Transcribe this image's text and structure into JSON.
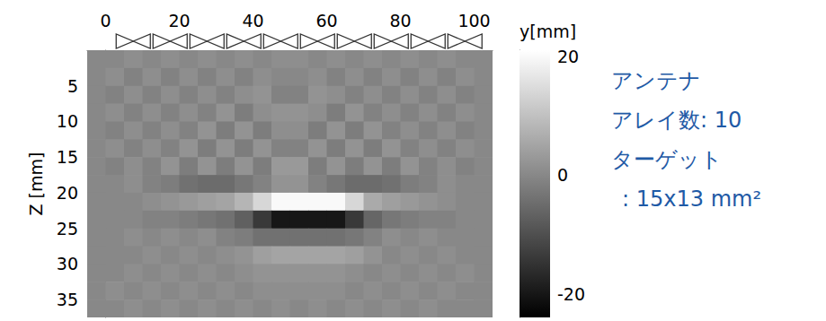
{
  "chart_data": {
    "type": "heatmap",
    "xlim": [
      -5,
      105
    ],
    "xticks": [
      0,
      20,
      40,
      60,
      80,
      100
    ],
    "ylim": [
      0,
      37.5
    ],
    "yticks": [
      5,
      10,
      15,
      20,
      25,
      30,
      35
    ],
    "ylabel": "Z [mm]",
    "x": [
      -2.5,
      2.5,
      7.5,
      12.5,
      17.5,
      22.5,
      27.5,
      32.5,
      37.5,
      42.5,
      47.5,
      52.5,
      57.5,
      62.5,
      67.5,
      72.5,
      77.5,
      82.5,
      87.5,
      92.5,
      97.5,
      102.5
    ],
    "y": [
      1.25,
      3.75,
      6.25,
      8.75,
      11.25,
      13.75,
      16.25,
      18.75,
      21.25,
      23.75,
      26.25,
      28.75,
      31.25,
      33.75,
      36.25
    ],
    "cells": [
      [
        0,
        0,
        1,
        0,
        1,
        0,
        1,
        0,
        1,
        0,
        1,
        1,
        0,
        1,
        0,
        1,
        0,
        1,
        0,
        1,
        0,
        0
      ],
      [
        0,
        1,
        -1,
        1,
        -1,
        1,
        -1,
        1,
        -1,
        1,
        0,
        0,
        1,
        -1,
        1,
        -1,
        1,
        -1,
        1,
        -1,
        1,
        0
      ],
      [
        0,
        -1,
        1,
        -1,
        1,
        -1,
        1,
        -1,
        1,
        2,
        -1,
        -1,
        2,
        1,
        -1,
        1,
        -1,
        1,
        -1,
        1,
        -1,
        0
      ],
      [
        0,
        1,
        -1,
        1,
        -1,
        1,
        -1,
        2,
        -2,
        1,
        2,
        2,
        1,
        -2,
        2,
        -1,
        1,
        -1,
        1,
        -1,
        1,
        0
      ],
      [
        0,
        -1,
        1,
        -1,
        1,
        -1,
        2,
        -2,
        2,
        -2,
        1,
        1,
        -2,
        2,
        -2,
        2,
        -1,
        1,
        -1,
        1,
        -1,
        0
      ],
      [
        0,
        1,
        -1,
        1,
        -1,
        2,
        -2,
        2,
        -2,
        2,
        -1,
        -1,
        2,
        -2,
        2,
        -2,
        2,
        -1,
        1,
        -1,
        1,
        0
      ],
      [
        0,
        -1,
        1,
        -1,
        2,
        -2,
        2,
        -2,
        2,
        -2,
        3,
        3,
        -2,
        2,
        -2,
        2,
        -2,
        2,
        -1,
        1,
        -1,
        0
      ],
      [
        0,
        0,
        1,
        -1,
        -2,
        -4,
        -5,
        -5,
        -3,
        -1,
        2,
        2,
        -1,
        -3,
        -5,
        -5,
        -4,
        -2,
        -1,
        1,
        0,
        0
      ],
      [
        0,
        0,
        0,
        1,
        2,
        3,
        4,
        5,
        8,
        14,
        20,
        20,
        20,
        20,
        14,
        6,
        4,
        3,
        2,
        1,
        0,
        0
      ],
      [
        0,
        0,
        0,
        -1,
        -1,
        -2,
        -3,
        -4,
        -7,
        -14,
        -20,
        -20,
        -20,
        -20,
        -14,
        -6,
        -3,
        -2,
        -1,
        -1,
        0,
        0
      ],
      [
        0,
        0,
        1,
        0,
        1,
        0,
        1,
        -1,
        -2,
        -4,
        -4,
        -4,
        -4,
        -4,
        -3,
        -1,
        1,
        0,
        1,
        0,
        0,
        0
      ],
      [
        0,
        0,
        0,
        1,
        0,
        1,
        0,
        1,
        2,
        4,
        5,
        5,
        5,
        5,
        4,
        2,
        0,
        1,
        0,
        1,
        0,
        0
      ],
      [
        0,
        0,
        1,
        0,
        1,
        0,
        1,
        0,
        1,
        2,
        2,
        2,
        2,
        2,
        1,
        0,
        1,
        0,
        1,
        0,
        1,
        0
      ],
      [
        0,
        1,
        0,
        1,
        0,
        1,
        0,
        1,
        0,
        1,
        1,
        1,
        1,
        1,
        0,
        1,
        0,
        1,
        0,
        1,
        0,
        0
      ],
      [
        0,
        0,
        1,
        0,
        1,
        0,
        1,
        0,
        1,
        0,
        1,
        0,
        1,
        0,
        1,
        0,
        1,
        0,
        1,
        0,
        0,
        0
      ]
    ],
    "colorbar": {
      "label": "y[mm]",
      "range": [
        -24,
        21
      ],
      "ticks": [
        -20,
        0,
        20
      ]
    },
    "antenna_x": [
      7.5,
      17.5,
      27.5,
      37.5,
      47.5,
      57.5,
      67.5,
      77.5,
      87.5,
      97.5
    ],
    "annotations": [
      "アンテナ",
      "アレイ数: 10",
      "ターゲット",
      ": 15x13 mm²"
    ]
  }
}
